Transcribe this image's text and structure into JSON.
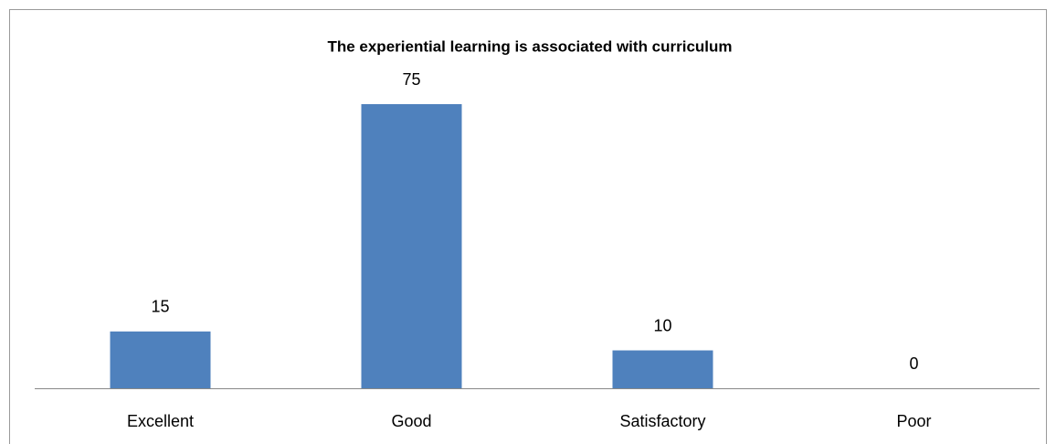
{
  "chart_data": {
    "type": "bar",
    "title": "The experiential learning is associated with curriculum",
    "categories": [
      "Excellent",
      "Good",
      "Satisfactory",
      "Poor"
    ],
    "values": [
      15,
      75,
      10,
      0
    ],
    "color": "#4f81bd"
  }
}
